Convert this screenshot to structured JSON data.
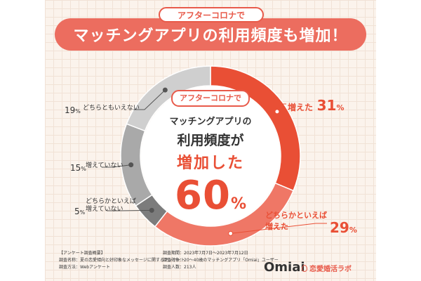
{
  "header": {
    "tag": "アフターコロナで",
    "title": "マッチングアプリの利用頻度も増加！"
  },
  "center": {
    "tag": "アフターコロナで",
    "line1": "マッチングアプリの",
    "line2": "利用頻度が",
    "line3": "増加した",
    "percent": "60",
    "unit": "%"
  },
  "labels": {
    "increased_text": "増えた",
    "increased_value": "31",
    "somewhat_increased_line1": "どちらかといえば",
    "somewhat_increased_line2": "増えた",
    "somewhat_increased_value": "29",
    "somewhat_not_line1": "どちらかといえば",
    "somewhat_not_line2": "増えていない",
    "somewhat_not_value": "5",
    "not_increased": "増えていない",
    "not_increased_value": "15",
    "neither": "どちらともいえない",
    "neither_value": "19",
    "unit": "%"
  },
  "chart_data": {
    "type": "pie",
    "title": "マッチングアプリの利用頻度も増加！",
    "categories": [
      "増えた",
      "どちらかといえば増えた",
      "どちらかといえば増えていない",
      "増えていない",
      "どちらともいえない"
    ],
    "values": [
      31,
      29,
      5,
      15,
      19
    ],
    "colors": [
      "#e94f35",
      "#ef7766",
      "#7c7c7c",
      "#a9a9a9",
      "#cfcfcf"
    ]
  },
  "footer": {
    "survey_title": "【アンケート調査概要】",
    "survey_name": "調査名称：夏の恋愛傾向と好印象なメッセージに関するアンケート",
    "survey_method": "調査方法：Webアンケート",
    "survey_period": "調査期間：2023年7月7日～2023年7月12日",
    "survey_target": "調査対象：20～40歳のマッチングアプリ「Omiai」ユーザー",
    "survey_count": "調査人数：213人"
  },
  "logos": {
    "omiai": "Omiai",
    "lab": "恋愛婚活ラボ"
  }
}
